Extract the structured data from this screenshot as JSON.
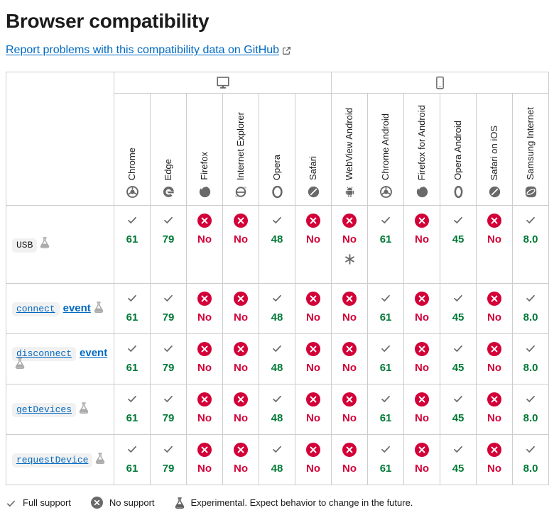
{
  "header": {
    "title": "Browser compatibility",
    "report_link_label": "Report problems with this compatibility data on GitHub",
    "external_link_icon": "external-link-icon"
  },
  "colors": {
    "link_blue": "#0069c2",
    "support_green": "#007936",
    "no_support_red": "#d30038",
    "icon_gray": "#696969",
    "border_gray": "#cdcdcd",
    "code_background": "#f2f1f1"
  },
  "table": {
    "platforms": [
      {
        "name": "desktop",
        "icon": "desktop-icon",
        "span": 6
      },
      {
        "name": "mobile",
        "icon": "mobile-icon",
        "span": 6
      }
    ],
    "browsers": [
      {
        "name": "Chrome",
        "icon": "chrome-icon"
      },
      {
        "name": "Edge",
        "icon": "edge-icon"
      },
      {
        "name": "Firefox",
        "icon": "firefox-icon"
      },
      {
        "name": "Internet Explorer",
        "icon": "internet-explorer-icon"
      },
      {
        "name": "Opera",
        "icon": "opera-icon"
      },
      {
        "name": "Safari",
        "icon": "safari-icon"
      },
      {
        "name": "WebView Android",
        "icon": "webview-android-icon"
      },
      {
        "name": "Chrome Android",
        "icon": "chrome-android-icon"
      },
      {
        "name": "Firefox for Android",
        "icon": "firefox-android-icon"
      },
      {
        "name": "Opera Android",
        "icon": "opera-android-icon"
      },
      {
        "name": "Safari on iOS",
        "icon": "safari-ios-icon"
      },
      {
        "name": "Samsung Internet",
        "icon": "samsung-internet-icon"
      }
    ],
    "rows": [
      {
        "feature": {
          "code": "USB",
          "text": "",
          "experimental": true,
          "is_link": false
        },
        "cells": [
          {
            "state": "yes",
            "label": "61"
          },
          {
            "state": "yes",
            "label": "79"
          },
          {
            "state": "no",
            "label": "No"
          },
          {
            "state": "no",
            "label": "No"
          },
          {
            "state": "yes",
            "label": "48"
          },
          {
            "state": "no",
            "label": "No"
          },
          {
            "state": "no",
            "label": "No",
            "note": "*"
          },
          {
            "state": "yes",
            "label": "61"
          },
          {
            "state": "no",
            "label": "No"
          },
          {
            "state": "yes",
            "label": "45"
          },
          {
            "state": "no",
            "label": "No"
          },
          {
            "state": "yes",
            "label": "8.0"
          }
        ]
      },
      {
        "feature": {
          "code": "connect",
          "text": "event",
          "experimental": true,
          "is_link": true
        },
        "cells": [
          {
            "state": "yes",
            "label": "61"
          },
          {
            "state": "yes",
            "label": "79"
          },
          {
            "state": "no",
            "label": "No"
          },
          {
            "state": "no",
            "label": "No"
          },
          {
            "state": "yes",
            "label": "48"
          },
          {
            "state": "no",
            "label": "No"
          },
          {
            "state": "no",
            "label": "No"
          },
          {
            "state": "yes",
            "label": "61"
          },
          {
            "state": "no",
            "label": "No"
          },
          {
            "state": "yes",
            "label": "45"
          },
          {
            "state": "no",
            "label": "No"
          },
          {
            "state": "yes",
            "label": "8.0"
          }
        ]
      },
      {
        "feature": {
          "code": "disconnect",
          "text": "event",
          "experimental": true,
          "is_link": true
        },
        "cells": [
          {
            "state": "yes",
            "label": "61"
          },
          {
            "state": "yes",
            "label": "79"
          },
          {
            "state": "no",
            "label": "No"
          },
          {
            "state": "no",
            "label": "No"
          },
          {
            "state": "yes",
            "label": "48"
          },
          {
            "state": "no",
            "label": "No"
          },
          {
            "state": "no",
            "label": "No"
          },
          {
            "state": "yes",
            "label": "61"
          },
          {
            "state": "no",
            "label": "No"
          },
          {
            "state": "yes",
            "label": "45"
          },
          {
            "state": "no",
            "label": "No"
          },
          {
            "state": "yes",
            "label": "8.0"
          }
        ]
      },
      {
        "feature": {
          "code": "getDevices",
          "text": "",
          "experimental": true,
          "is_link": true
        },
        "cells": [
          {
            "state": "yes",
            "label": "61"
          },
          {
            "state": "yes",
            "label": "79"
          },
          {
            "state": "no",
            "label": "No"
          },
          {
            "state": "no",
            "label": "No"
          },
          {
            "state": "yes",
            "label": "48"
          },
          {
            "state": "no",
            "label": "No"
          },
          {
            "state": "no",
            "label": "No"
          },
          {
            "state": "yes",
            "label": "61"
          },
          {
            "state": "no",
            "label": "No"
          },
          {
            "state": "yes",
            "label": "45"
          },
          {
            "state": "no",
            "label": "No"
          },
          {
            "state": "yes",
            "label": "8.0"
          }
        ]
      },
      {
        "feature": {
          "code": "requestDevice",
          "text": "",
          "experimental": true,
          "is_link": true
        },
        "cells": [
          {
            "state": "yes",
            "label": "61"
          },
          {
            "state": "yes",
            "label": "79"
          },
          {
            "state": "no",
            "label": "No"
          },
          {
            "state": "no",
            "label": "No"
          },
          {
            "state": "yes",
            "label": "48"
          },
          {
            "state": "no",
            "label": "No"
          },
          {
            "state": "no",
            "label": "No"
          },
          {
            "state": "yes",
            "label": "61"
          },
          {
            "state": "no",
            "label": "No"
          },
          {
            "state": "yes",
            "label": "45"
          },
          {
            "state": "no",
            "label": "No"
          },
          {
            "state": "yes",
            "label": "8.0"
          }
        ]
      }
    ]
  },
  "legend": {
    "items": [
      {
        "icon": "check-icon",
        "label": "Full support"
      },
      {
        "icon": "no-support-icon",
        "label": "No support"
      },
      {
        "icon": "experimental-icon",
        "label": "Experimental. Expect behavior to change in the future."
      }
    ]
  }
}
